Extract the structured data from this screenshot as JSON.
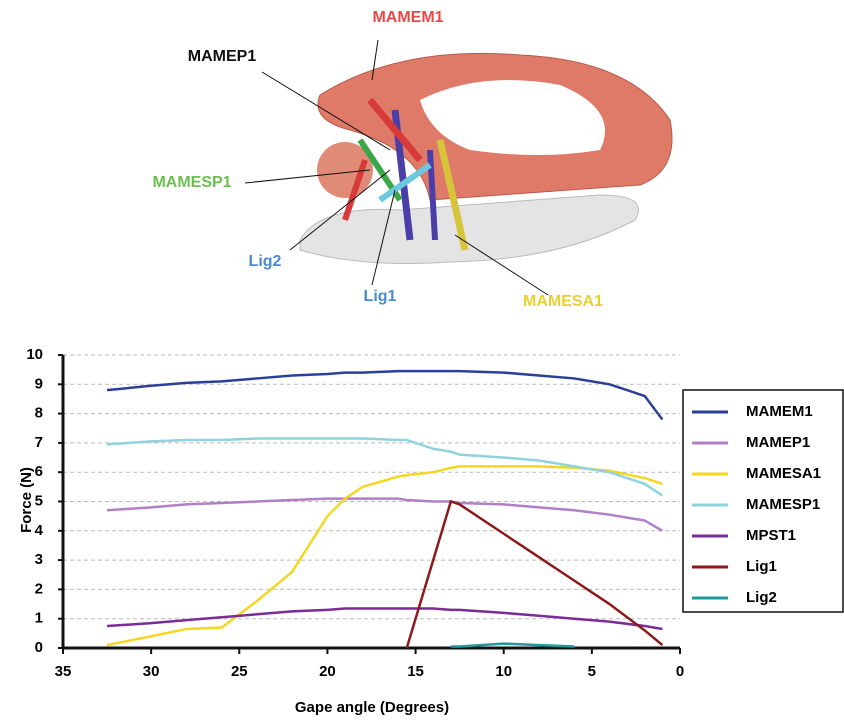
{
  "illustration": {
    "labels": [
      "MAMEM1",
      "MAMEP1",
      "MAMESP1",
      "Lig2",
      "Lig1",
      "MAMESA1"
    ]
  },
  "chart_data": {
    "type": "line",
    "x_label": "Gape angle (Degrees)",
    "y_label": "Force (N)",
    "x": [
      32.5,
      30,
      28,
      26,
      24,
      22,
      20,
      19,
      18,
      16,
      15.5,
      14,
      13,
      12.5,
      10,
      8,
      6,
      4,
      2,
      1
    ],
    "series": [
      {
        "name": "MAMEM1",
        "color": "#2b3f9a",
        "values": [
          8.8,
          8.95,
          9.05,
          9.1,
          9.2,
          9.3,
          9.35,
          9.4,
          9.4,
          9.45,
          9.45,
          9.45,
          9.45,
          9.45,
          9.4,
          9.3,
          9.2,
          9.0,
          8.6,
          7.8
        ]
      },
      {
        "name": "MAMEP1",
        "color": "#b07fc8",
        "values": [
          4.7,
          4.8,
          4.9,
          4.95,
          5.0,
          5.05,
          5.1,
          5.1,
          5.1,
          5.1,
          5.05,
          5.0,
          5.0,
          4.95,
          4.9,
          4.8,
          4.7,
          4.55,
          4.35,
          4.0
        ]
      },
      {
        "name": "MAMESA1",
        "color": "#f5d623",
        "values": [
          0.1,
          0.4,
          0.65,
          0.7,
          1.6,
          2.6,
          4.5,
          5.1,
          5.5,
          5.85,
          5.9,
          6.0,
          6.15,
          6.2,
          6.2,
          6.2,
          6.15,
          6.05,
          5.8,
          5.6
        ]
      },
      {
        "name": "MAMESP1",
        "color": "#8fd3dc",
        "values": [
          6.95,
          7.05,
          7.1,
          7.1,
          7.15,
          7.15,
          7.15,
          7.15,
          7.15,
          7.1,
          7.1,
          6.8,
          6.7,
          6.6,
          6.5,
          6.4,
          6.2,
          6.0,
          5.6,
          5.2
        ]
      },
      {
        "name": "MPST1",
        "color": "#7a2c97",
        "values": [
          0.75,
          0.85,
          0.95,
          1.05,
          1.15,
          1.25,
          1.3,
          1.35,
          1.35,
          1.35,
          1.35,
          1.35,
          1.3,
          1.3,
          1.2,
          1.1,
          1.0,
          0.9,
          0.75,
          0.65
        ]
      },
      {
        "name": "Lig1",
        "color": "#8b1a1a",
        "values": [
          null,
          null,
          null,
          null,
          null,
          null,
          null,
          null,
          null,
          null,
          0,
          3.0,
          5.0,
          4.9,
          3.9,
          3.1,
          2.3,
          1.5,
          0.6,
          0.1
        ]
      },
      {
        "name": "Lig2",
        "color": "#1f9a9a",
        "values": [
          null,
          null,
          null,
          null,
          null,
          null,
          null,
          null,
          null,
          null,
          null,
          null,
          0.05,
          0.05,
          0.15,
          0.1,
          0.05,
          null,
          null,
          null
        ]
      }
    ],
    "xlim": [
      35,
      0
    ],
    "xticks": [
      35,
      30,
      25,
      20,
      15,
      10,
      5,
      0
    ],
    "ylim": [
      0,
      10
    ],
    "yticks": [
      0,
      1,
      2,
      3,
      4,
      5,
      6,
      7,
      8,
      9,
      10
    ],
    "grid": true
  }
}
